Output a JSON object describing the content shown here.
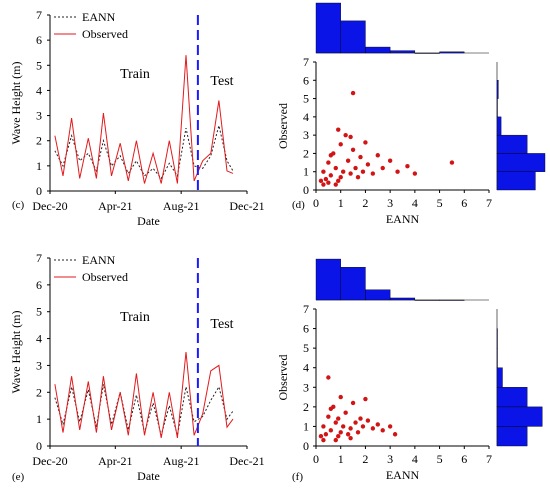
{
  "figure": {
    "panels": [
      "(c)",
      "(d)",
      "(e)",
      "(f)"
    ]
  },
  "colors": {
    "observed": "#e31a1c",
    "eann": "#222222",
    "split_line": "#1a1aff",
    "histogram": "#0a14e6",
    "scatter": "#d21414"
  },
  "chart_data": [
    {
      "panel": "(c)",
      "type": "line",
      "xlabel": "Date",
      "ylabel": "Wave Height (m)",
      "x_ticks": [
        "Dec-20",
        "Apr-21",
        "Aug-21",
        "Dec-21"
      ],
      "y_ticks": [
        0,
        1,
        2,
        3,
        4,
        5,
        6,
        7
      ],
      "ylim": [
        0,
        7
      ],
      "xlim": [
        "2020-12-01",
        "2021-12-01"
      ],
      "split_date": "2021-09-01",
      "annotations": [
        "Train",
        "Test"
      ],
      "legend": [
        "EANN",
        "Observed"
      ],
      "legend_position": "top-left",
      "series": [
        {
          "name": "EANN",
          "style": "dashed",
          "x": [
            "2020-12-10",
            "2020-12-25",
            "2021-01-10",
            "2021-01-25",
            "2021-02-10",
            "2021-02-25",
            "2021-03-10",
            "2021-03-25",
            "2021-04-10",
            "2021-04-25",
            "2021-05-10",
            "2021-05-25",
            "2021-06-10",
            "2021-06-25",
            "2021-07-10",
            "2021-07-25",
            "2021-08-10",
            "2021-08-25",
            "2021-09-10",
            "2021-09-25",
            "2021-10-10",
            "2021-10-25",
            "2021-11-05"
          ],
          "values": [
            1.6,
            1.0,
            2.2,
            1.2,
            1.5,
            0.8,
            2.0,
            1.0,
            1.4,
            0.7,
            1.2,
            0.6,
            0.9,
            0.5,
            1.1,
            0.6,
            2.5,
            1.0,
            0.9,
            1.4,
            2.6,
            1.2,
            0.8
          ]
        },
        {
          "name": "Observed",
          "style": "solid",
          "x": [
            "2020-12-10",
            "2020-12-25",
            "2021-01-10",
            "2021-01-25",
            "2021-02-10",
            "2021-02-25",
            "2021-03-10",
            "2021-03-25",
            "2021-04-10",
            "2021-04-25",
            "2021-05-10",
            "2021-05-25",
            "2021-06-10",
            "2021-06-25",
            "2021-07-10",
            "2021-07-25",
            "2021-08-10",
            "2021-08-25",
            "2021-09-10",
            "2021-09-25",
            "2021-10-10",
            "2021-10-25",
            "2021-11-05"
          ],
          "values": [
            2.2,
            0.6,
            2.9,
            0.5,
            2.1,
            0.5,
            3.1,
            0.6,
            1.9,
            0.4,
            2.0,
            0.3,
            1.5,
            0.3,
            2.0,
            0.3,
            5.4,
            0.4,
            1.2,
            1.5,
            3.6,
            0.8,
            0.7
          ]
        }
      ]
    },
    {
      "panel": "(d)",
      "type": "scatter",
      "xlabel": "EANN",
      "ylabel": "Observed",
      "x_ticks": [
        0,
        1,
        2,
        3,
        4,
        5,
        6,
        7
      ],
      "y_ticks": [
        0,
        1,
        2,
        3,
        4,
        5,
        6,
        7
      ],
      "xlim": [
        0,
        7
      ],
      "ylim": [
        0,
        7
      ],
      "points": [
        [
          0.2,
          0.5
        ],
        [
          0.3,
          1.0
        ],
        [
          0.4,
          0.6
        ],
        [
          0.5,
          1.5
        ],
        [
          0.6,
          0.8
        ],
        [
          0.7,
          2.0
        ],
        [
          0.8,
          1.2
        ],
        [
          0.9,
          0.5
        ],
        [
          1.0,
          2.5
        ],
        [
          1.1,
          1.0
        ],
        [
          1.2,
          3.0
        ],
        [
          1.3,
          1.6
        ],
        [
          1.4,
          0.9
        ],
        [
          1.5,
          2.2
        ],
        [
          1.6,
          1.2
        ],
        [
          1.7,
          0.7
        ],
        [
          1.8,
          1.8
        ],
        [
          1.9,
          1.0
        ],
        [
          2.0,
          2.6
        ],
        [
          2.1,
          1.4
        ],
        [
          2.3,
          0.9
        ],
        [
          2.5,
          1.9
        ],
        [
          2.7,
          1.2
        ],
        [
          3.0,
          1.6
        ],
        [
          3.3,
          1.0
        ],
        [
          3.7,
          1.3
        ],
        [
          4.0,
          0.9
        ],
        [
          1.5,
          5.3
        ],
        [
          5.5,
          1.5
        ],
        [
          0.5,
          0.4
        ],
        [
          0.8,
          0.3
        ],
        [
          1.0,
          0.7
        ],
        [
          0.3,
          0.3
        ],
        [
          0.6,
          1.9
        ],
        [
          0.9,
          3.3
        ],
        [
          1.4,
          2.9
        ]
      ],
      "x_histogram": [
        0.42,
        0.27,
        0.05,
        0.02,
        0.0,
        0.01
      ],
      "y_histogram": [
        0.28,
        0.35,
        0.22,
        0.03,
        0.0,
        0.01
      ]
    },
    {
      "panel": "(e)",
      "type": "line",
      "xlabel": "Date",
      "ylabel": "Wave Height (m)",
      "x_ticks": [
        "Dec-20",
        "Apr-21",
        "Aug-21",
        "Dec-21"
      ],
      "y_ticks": [
        0,
        1,
        2,
        3,
        4,
        5,
        6,
        7
      ],
      "ylim": [
        0,
        7
      ],
      "xlim": [
        "2020-12-01",
        "2021-12-01"
      ],
      "split_date": "2021-09-01",
      "annotations": [
        "Train",
        "Test"
      ],
      "legend": [
        "EANN",
        "Observed"
      ],
      "legend_position": "top-left",
      "series": [
        {
          "name": "EANN",
          "style": "dashed",
          "x": [
            "2020-12-10",
            "2020-12-25",
            "2021-01-10",
            "2021-01-25",
            "2021-02-10",
            "2021-02-25",
            "2021-03-10",
            "2021-03-25",
            "2021-04-10",
            "2021-04-25",
            "2021-05-10",
            "2021-05-25",
            "2021-06-10",
            "2021-06-25",
            "2021-07-10",
            "2021-07-25",
            "2021-08-10",
            "2021-08-25",
            "2021-09-10",
            "2021-09-25",
            "2021-10-10",
            "2021-10-25",
            "2021-11-05"
          ],
          "values": [
            1.8,
            0.8,
            2.2,
            0.9,
            2.1,
            0.7,
            2.3,
            0.8,
            2.0,
            0.6,
            1.9,
            0.5,
            1.6,
            0.4,
            1.5,
            0.4,
            2.2,
            0.9,
            1.1,
            1.7,
            2.2,
            1.0,
            1.3
          ]
        },
        {
          "name": "Observed",
          "style": "solid",
          "x": [
            "2020-12-10",
            "2020-12-25",
            "2021-01-10",
            "2021-01-25",
            "2021-02-10",
            "2021-02-25",
            "2021-03-10",
            "2021-03-25",
            "2021-04-10",
            "2021-04-25",
            "2021-05-10",
            "2021-05-25",
            "2021-06-10",
            "2021-06-25",
            "2021-07-10",
            "2021-07-25",
            "2021-08-10",
            "2021-08-25",
            "2021-09-10",
            "2021-09-25",
            "2021-10-10",
            "2021-10-25",
            "2021-11-05"
          ],
          "values": [
            2.3,
            0.5,
            2.6,
            0.6,
            2.4,
            0.5,
            2.6,
            0.6,
            2.0,
            0.4,
            2.7,
            0.4,
            2.0,
            0.3,
            2.0,
            0.3,
            3.5,
            0.4,
            1.2,
            2.8,
            3.0,
            0.7,
            1.0
          ]
        }
      ]
    },
    {
      "panel": "(f)",
      "type": "scatter",
      "xlabel": "EANN",
      "ylabel": "Observed",
      "x_ticks": [
        0,
        1,
        2,
        3,
        4,
        5,
        6,
        7
      ],
      "y_ticks": [
        0,
        1,
        2,
        3,
        4,
        5,
        6,
        7
      ],
      "xlim": [
        0,
        7
      ],
      "ylim": [
        0,
        7
      ],
      "points": [
        [
          0.2,
          0.5
        ],
        [
          0.3,
          1.0
        ],
        [
          0.4,
          0.6
        ],
        [
          0.5,
          1.5
        ],
        [
          0.6,
          0.8
        ],
        [
          0.7,
          2.0
        ],
        [
          0.8,
          1.2
        ],
        [
          0.9,
          0.5
        ],
        [
          1.0,
          2.5
        ],
        [
          1.1,
          1.0
        ],
        [
          1.2,
          1.7
        ],
        [
          1.3,
          0.6
        ],
        [
          1.4,
          0.9
        ],
        [
          1.5,
          2.2
        ],
        [
          1.6,
          1.2
        ],
        [
          1.7,
          0.7
        ],
        [
          1.8,
          1.4
        ],
        [
          1.9,
          1.0
        ],
        [
          2.0,
          2.4
        ],
        [
          2.1,
          1.3
        ],
        [
          2.3,
          0.9
        ],
        [
          2.5,
          1.1
        ],
        [
          2.7,
          0.8
        ],
        [
          3.0,
          1.0
        ],
        [
          3.2,
          0.6
        ],
        [
          0.5,
          3.5
        ],
        [
          0.8,
          0.3
        ],
        [
          1.0,
          0.7
        ],
        [
          0.3,
          0.3
        ],
        [
          0.6,
          1.9
        ],
        [
          0.9,
          1.4
        ],
        [
          1.4,
          0.4
        ]
      ],
      "x_histogram": [
        0.4,
        0.32,
        0.1,
        0.02,
        0.0,
        0.0
      ],
      "y_histogram": [
        0.22,
        0.33,
        0.22,
        0.04,
        0.0,
        0.0
      ]
    }
  ]
}
